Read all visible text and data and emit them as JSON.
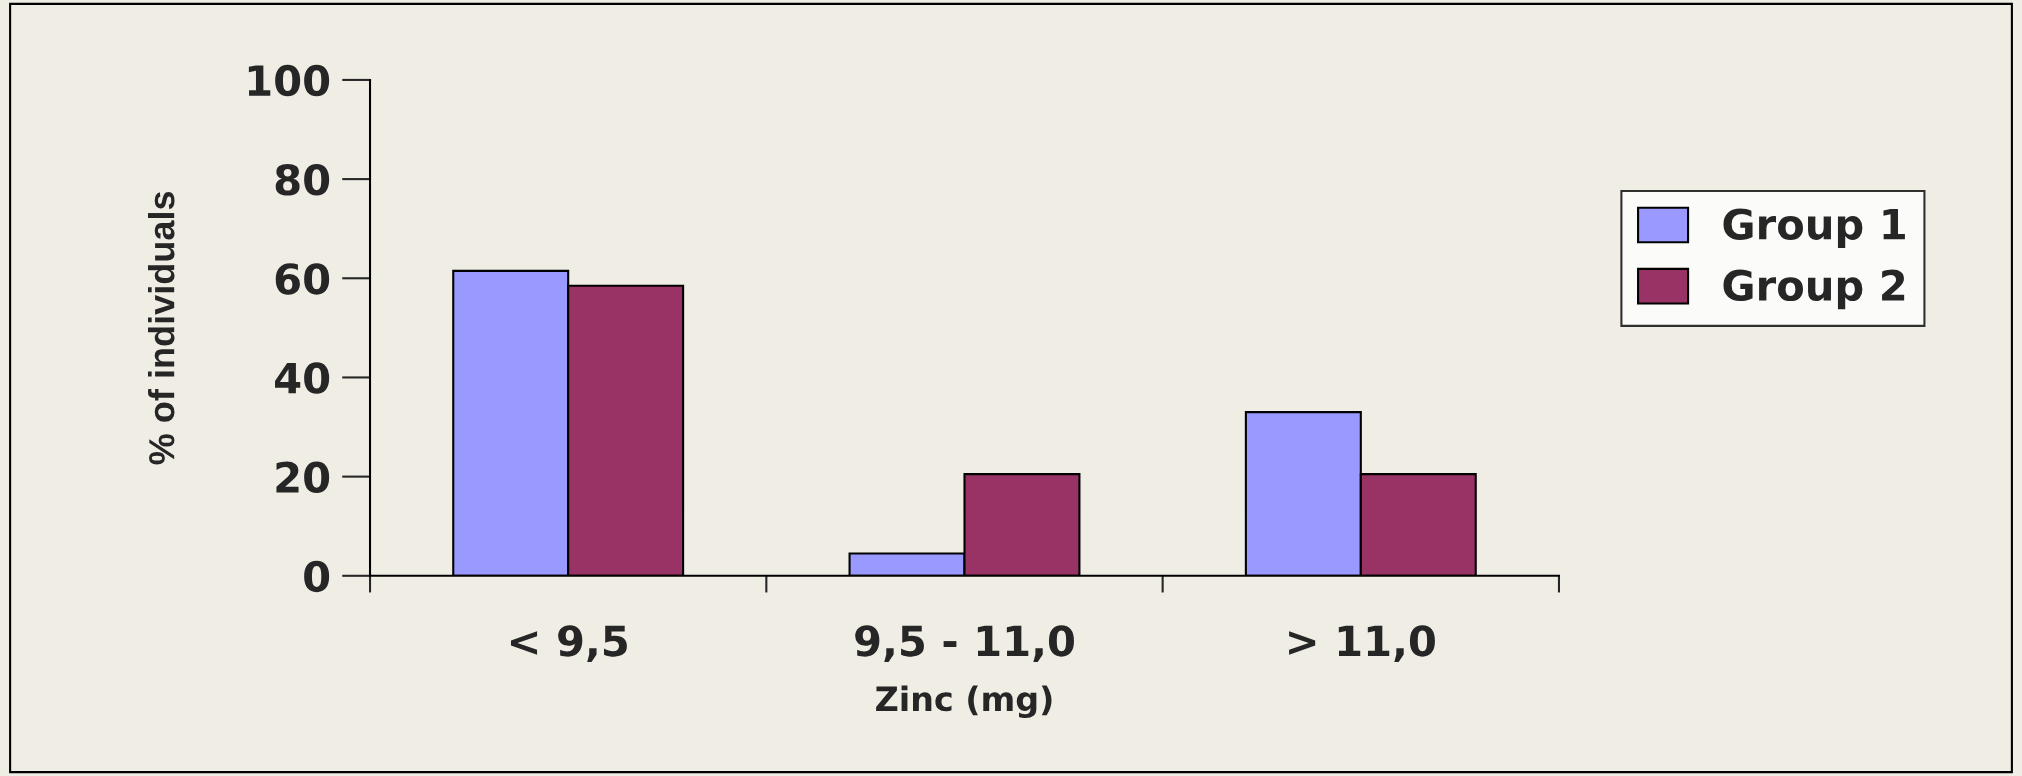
{
  "chart_data": {
    "type": "bar",
    "xlabel": "Zinc (mg)",
    "ylabel": "% of individuals",
    "categories": [
      "< 9,5",
      "9,5 - 11,0",
      "> 11,0"
    ],
    "series": [
      {
        "name": "Group 1",
        "color": "#9999ff",
        "values": [
          61.5,
          4.5,
          33
        ]
      },
      {
        "name": "Group 2",
        "color": "#993366",
        "values": [
          58.5,
          20.5,
          20.5
        ]
      }
    ],
    "ylim": [
      0,
      100
    ],
    "yticks": [
      0,
      20,
      40,
      60,
      80,
      100
    ],
    "grid": false,
    "legend": "right"
  }
}
